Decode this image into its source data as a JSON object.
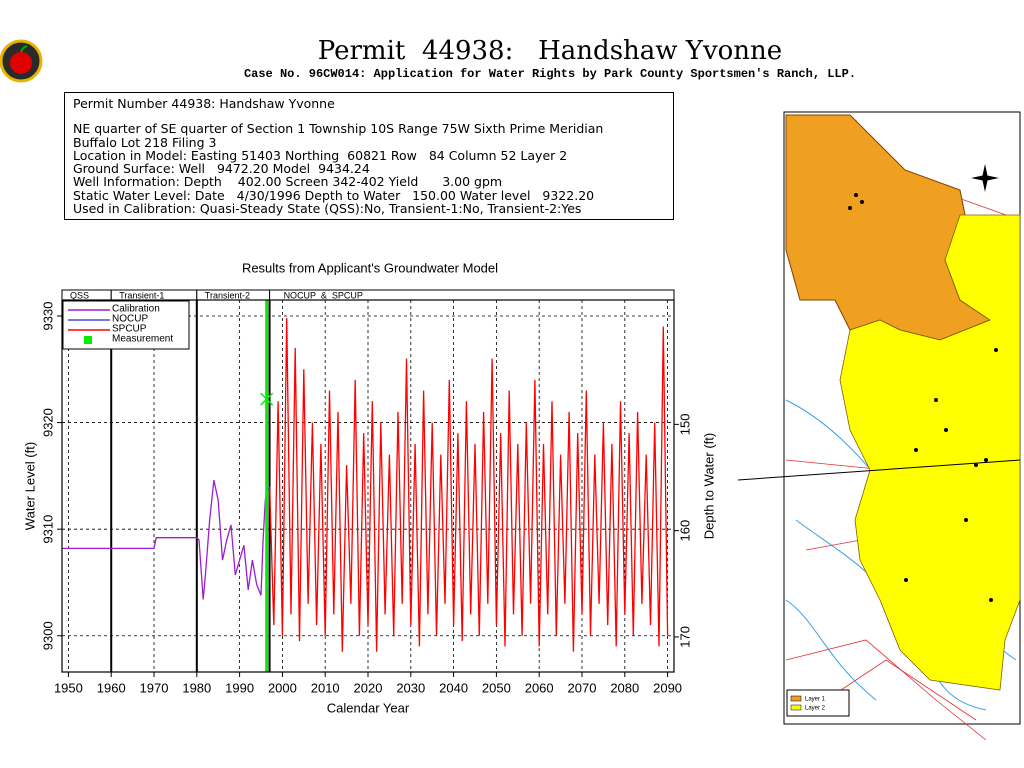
{
  "header": {
    "title": "Permit  44938:   Handshaw Yvonne",
    "subtitle": "Case No. 96CW014: Application for Water Rights by Park County Sportsmen's Ranch, LLP."
  },
  "info": {
    "lines": [
      "Permit Number 44938: Handshaw Yvonne",
      "NE quarter of SE quarter of Section 1 Township 10S Range 75W Sixth Prime Meridian",
      "Buffalo Lot 218 Filing 3",
      "Location in Model: Easting 51403 Northing  60821 Row   84 Column 52 Layer 2",
      "Ground Surface: Well   9472.20 Model  9434.24",
      "Well Information: Depth    402.00 Screen 342-402 Yield      3.00 gpm",
      "Static Water Level: Date   4/30/1996 Depth to Water   150.00 Water level   9322.20",
      "Used in Calibration: Quasi-Steady State (QSS):No, Transient-1:No, Transient-2:Yes"
    ]
  },
  "chart_data": {
    "type": "line",
    "title": "Results from Applicant's Groundwater Model",
    "xlabel": "Calendar Year",
    "ylabel": "Water Level (ft)",
    "y2label": "Depth to Water (ft)",
    "xlim": [
      1948.5,
      2091.5
    ],
    "xticks": [
      1950,
      1960,
      1970,
      1980,
      1990,
      2000,
      2010,
      2020,
      2030,
      2040,
      2050,
      2060,
      2070,
      2080,
      2090
    ],
    "ylim": [
      9296.6,
      9331.5
    ],
    "yticks": [
      9300,
      9310,
      9320,
      9330
    ],
    "y2lim": [
      173.3,
      138.3
    ],
    "y2ticks": [
      150,
      160,
      170
    ],
    "grid": true,
    "periods": [
      {
        "label": "QSS",
        "start": 1948.5,
        "end": 1960
      },
      {
        "label": "Transient-1",
        "start": 1960,
        "end": 1980
      },
      {
        "label": "Transient-2",
        "start": 1980,
        "end": 1997
      },
      {
        "label": "NOCUP  &  SPCUP",
        "start": 1997,
        "end": 2091.5
      }
    ],
    "series": [
      {
        "name": "Calibration",
        "color": "#9a1fd0",
        "x": [
          1948.5,
          1970,
          1970.5,
          1980,
          1980.5,
          1981.5,
          1982,
          1983,
          1984,
          1985,
          1986,
          1987,
          1988,
          1989,
          1990,
          1991,
          1992,
          1993,
          1994,
          1995,
          1995.5,
          1996,
          1996.5
        ],
        "values": [
          9308.2,
          9308.2,
          9309.2,
          9309.2,
          9309.0,
          9303.4,
          9305.7,
          9310.9,
          9314.6,
          9312.7,
          9307.1,
          9309.0,
          9310.4,
          9305.7,
          9307.1,
          9308.5,
          9304.3,
          9307.1,
          9304.8,
          9303.8,
          9309.0,
          9312.7,
          9313.7
        ]
      },
      {
        "name": "NOCUP",
        "color": "#4a4ad8",
        "x": [
          1996.5,
          1997
        ],
        "values": [
          9313.7,
          9314
        ]
      },
      {
        "name": "SPCUP",
        "color": "#ff0000",
        "x": [
          1997,
          1998,
          1999,
          2000,
          2001,
          2002,
          2003,
          2004,
          2005,
          2006,
          2007,
          2008,
          2009,
          2010,
          2011,
          2012,
          2013,
          2014,
          2015,
          2016,
          2017,
          2018,
          2019,
          2020,
          2021,
          2022,
          2023,
          2024,
          2025,
          2026,
          2027,
          2028,
          2029,
          2030,
          2031,
          2032,
          2033,
          2034,
          2035,
          2036,
          2037,
          2038,
          2039,
          2040,
          2041,
          2042,
          2043,
          2044,
          2045,
          2046,
          2047,
          2048,
          2049,
          2050,
          2051,
          2052,
          2053,
          2054,
          2055,
          2056,
          2057,
          2058,
          2059,
          2060,
          2061,
          2062,
          2063,
          2064,
          2065,
          2066,
          2067,
          2068,
          2069,
          2070,
          2071,
          2072,
          2073,
          2074,
          2075,
          2076,
          2077,
          2078,
          2079,
          2080,
          2081,
          2082,
          2083,
          2084,
          2085,
          2086,
          2087,
          2088,
          2089,
          2090
        ],
        "values": [
          9314,
          9301,
          9322,
          9300,
          9329.8,
          9302,
          9327,
          9299.5,
          9325,
          9303,
          9320,
          9301,
          9318,
          9300,
          9323,
          9302,
          9321,
          9298.5,
          9316,
          9303,
          9324,
          9300,
          9319,
          9301,
          9322,
          9298.5,
          9320,
          9302,
          9317,
          9300,
          9321,
          9303,
          9326,
          9301,
          9318,
          9299,
          9323,
          9302,
          9320,
          9300,
          9317,
          9303,
          9324,
          9301,
          9319,
          9299.5,
          9322,
          9302,
          9318,
          9300,
          9321,
          9303,
          9326,
          9301,
          9319,
          9299,
          9323,
          9302,
          9318,
          9300,
          9320,
          9303,
          9324,
          9299,
          9318,
          9302,
          9322,
          9300,
          9317,
          9303,
          9321,
          9298.5,
          9319,
          9302,
          9323,
          9300,
          9317,
          9303,
          9320,
          9301,
          9318,
          9299,
          9322,
          9302,
          9319,
          9300,
          9321,
          9303,
          9317,
          9301,
          9320,
          9299,
          9329,
          9300
        ]
      }
    ],
    "measurement": {
      "name": "Measurement",
      "color": "#00ee00",
      "x": 1996.33,
      "value": 9322.2
    }
  },
  "map": {
    "legend": [
      "Layer 1",
      "Layer 2"
    ]
  }
}
